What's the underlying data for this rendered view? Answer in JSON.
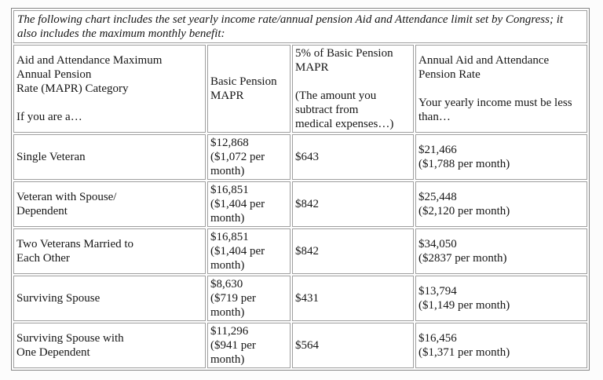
{
  "colors": {
    "background": "#fcfcfc",
    "cell_background": "#ffffff",
    "text": "#161616",
    "border_outer": "#868686",
    "border_cell": "#9f9f9f"
  },
  "intro": "The following chart includes the set yearly income rate/annual pension Aid and Attendance limit set by Congress; it also includes the maximum monthly benefit:",
  "table": {
    "headers": [
      "Aid and Attendance Maximum\nAnnual Pension\nRate (MAPR) Category\n\nIf you are a…",
      "Basic Pension\nMAPR",
      "5% of Basic Pension\nMAPR\n\n(The amount you\nsubtract from\nmedical expenses…)",
      "Annual Aid and Attendance\nPension Rate\n\nYour yearly income must be less\nthan…"
    ],
    "rows": [
      [
        "Single Veteran",
        "$12,868\n($1,072 per\nmonth)",
        "$643",
        "$21,466\n($1,788 per month)"
      ],
      [
        "Veteran with Spouse/\nDependent",
        "$16,851\n($1,404 per\nmonth)",
        "$842",
        "$25,448\n($2,120 per month)"
      ],
      [
        "Two Veterans Married to\nEach Other",
        "$16,851\n($1,404 per\nmonth)",
        "$842",
        "$34,050\n($2837 per month)"
      ],
      [
        "Surviving Spouse",
        "$8,630\n($719 per\nmonth)",
        "$431",
        "$13,794\n($1,149 per month)"
      ],
      [
        "Surviving Spouse with\nOne Dependent",
        "$11,296\n($941 per\nmonth)",
        "$564",
        "$16,456\n($1,371 per month)"
      ]
    ]
  }
}
